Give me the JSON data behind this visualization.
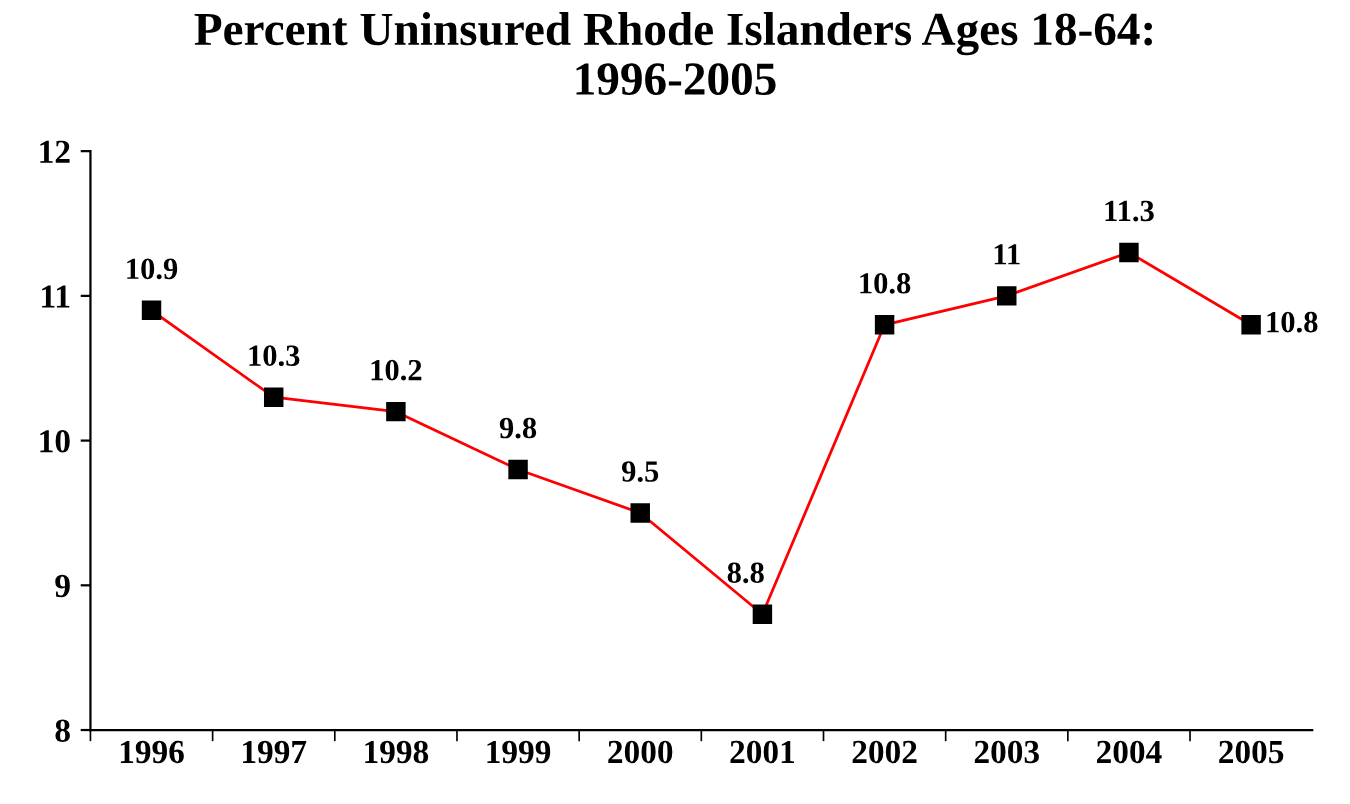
{
  "chart_data": {
    "type": "line",
    "title": "Percent Uninsured Rhode Islanders Ages 18-64:\n1996-2005",
    "categories": [
      "1996",
      "1997",
      "1998",
      "1999",
      "2000",
      "2001",
      "2002",
      "2003",
      "2004",
      "2005"
    ],
    "series": [
      {
        "color": "#ff0000",
        "values": [
          10.9,
          10.3,
          10.2,
          9.8,
          9.5,
          8.8,
          10.8,
          11,
          11.3,
          10.8
        ]
      }
    ],
    "ylim": [
      8,
      12
    ],
    "yticks": [
      8,
      9,
      10,
      11,
      12
    ],
    "grid": false,
    "marker": "square",
    "line_style": "solid",
    "data_labels": true
  }
}
